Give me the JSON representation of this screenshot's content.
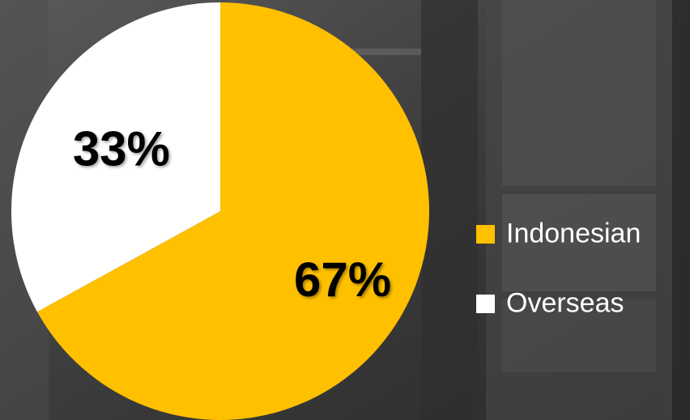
{
  "chart_data": {
    "type": "pie",
    "title": "",
    "slices": [
      {
        "label": "Indonesian",
        "value": 67,
        "display": "67%",
        "color": "#FFC000"
      },
      {
        "label": "Overseas",
        "value": 33,
        "display": "33%",
        "color": "#FFFFFF"
      }
    ],
    "start_angle_deg": 0,
    "direction": "clockwise",
    "legend_position": "right"
  }
}
